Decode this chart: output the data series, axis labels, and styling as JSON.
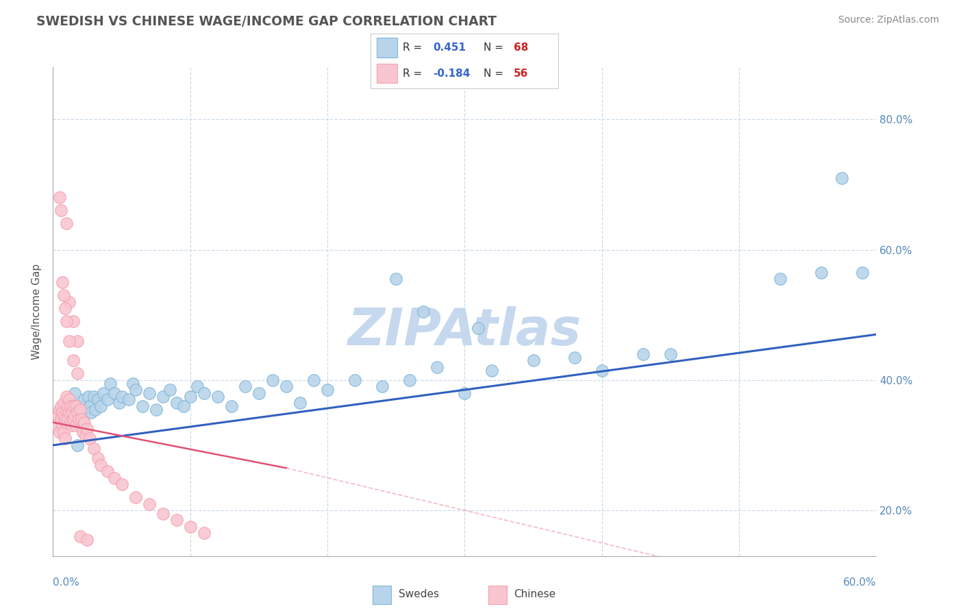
{
  "title": "SWEDISH VS CHINESE WAGE/INCOME GAP CORRELATION CHART",
  "source_text": "Source: ZipAtlas.com",
  "ylabel": "Wage/Income Gap",
  "xlim": [
    0.0,
    0.6
  ],
  "ylim": [
    0.13,
    0.88
  ],
  "xticks": [
    0.0,
    0.1,
    0.2,
    0.3,
    0.4,
    0.5,
    0.6
  ],
  "yticks": [
    0.2,
    0.4,
    0.6,
    0.8
  ],
  "ytick_labels": [
    "20.0%",
    "40.0%",
    "60.0%",
    "80.0%"
  ],
  "blue_color": "#7eb5d6",
  "blue_fill": "#b8d4ea",
  "pink_color": "#f4a0b0",
  "pink_fill": "#f9c6d0",
  "trend_blue": "#3060c0",
  "trend_pink": "#e05070",
  "watermark_color": "#c5d8ee",
  "title_color": "#555555",
  "axis_color": "#5588bb",
  "legend_R_color": "#3366cc",
  "legend_N_color": "#cc2222",
  "blue_x": [
    0.005,
    0.007,
    0.008,
    0.01,
    0.012,
    0.013,
    0.015,
    0.016,
    0.017,
    0.018,
    0.02,
    0.021,
    0.022,
    0.023,
    0.025,
    0.026,
    0.027,
    0.028,
    0.03,
    0.031,
    0.033,
    0.035,
    0.037,
    0.04,
    0.042,
    0.045,
    0.048,
    0.05,
    0.055,
    0.058,
    0.06,
    0.065,
    0.07,
    0.075,
    0.08,
    0.085,
    0.09,
    0.095,
    0.1,
    0.105,
    0.11,
    0.12,
    0.13,
    0.14,
    0.15,
    0.16,
    0.17,
    0.18,
    0.19,
    0.2,
    0.22,
    0.24,
    0.26,
    0.28,
    0.3,
    0.32,
    0.35,
    0.38,
    0.4,
    0.43,
    0.25,
    0.27,
    0.31,
    0.45,
    0.53,
    0.56,
    0.575,
    0.59
  ],
  "blue_y": [
    0.33,
    0.345,
    0.36,
    0.34,
    0.355,
    0.365,
    0.35,
    0.38,
    0.335,
    0.3,
    0.36,
    0.345,
    0.34,
    0.37,
    0.355,
    0.375,
    0.36,
    0.35,
    0.375,
    0.355,
    0.37,
    0.36,
    0.38,
    0.37,
    0.395,
    0.38,
    0.365,
    0.375,
    0.37,
    0.395,
    0.385,
    0.36,
    0.38,
    0.355,
    0.375,
    0.385,
    0.365,
    0.36,
    0.375,
    0.39,
    0.38,
    0.375,
    0.36,
    0.39,
    0.38,
    0.4,
    0.39,
    0.365,
    0.4,
    0.385,
    0.4,
    0.39,
    0.4,
    0.42,
    0.38,
    0.415,
    0.43,
    0.435,
    0.415,
    0.44,
    0.555,
    0.505,
    0.48,
    0.44,
    0.555,
    0.565,
    0.71,
    0.565
  ],
  "pink_x": [
    0.003,
    0.004,
    0.005,
    0.005,
    0.006,
    0.006,
    0.007,
    0.007,
    0.008,
    0.008,
    0.008,
    0.009,
    0.009,
    0.01,
    0.01,
    0.01,
    0.011,
    0.011,
    0.012,
    0.012,
    0.013,
    0.013,
    0.014,
    0.014,
    0.015,
    0.015,
    0.016,
    0.017,
    0.017,
    0.018,
    0.019,
    0.02,
    0.021,
    0.022,
    0.023,
    0.024,
    0.025,
    0.027,
    0.03,
    0.033,
    0.035,
    0.04,
    0.045,
    0.05,
    0.06,
    0.07,
    0.08,
    0.09,
    0.1,
    0.11,
    0.01,
    0.012,
    0.015,
    0.018,
    0.02,
    0.025
  ],
  "pink_y": [
    0.33,
    0.345,
    0.355,
    0.32,
    0.36,
    0.34,
    0.35,
    0.33,
    0.365,
    0.345,
    0.32,
    0.34,
    0.31,
    0.375,
    0.355,
    0.335,
    0.36,
    0.34,
    0.37,
    0.35,
    0.36,
    0.335,
    0.35,
    0.33,
    0.36,
    0.34,
    0.345,
    0.36,
    0.33,
    0.35,
    0.34,
    0.355,
    0.34,
    0.32,
    0.335,
    0.315,
    0.325,
    0.31,
    0.295,
    0.28,
    0.27,
    0.26,
    0.25,
    0.24,
    0.22,
    0.21,
    0.195,
    0.185,
    0.175,
    0.165,
    0.64,
    0.52,
    0.49,
    0.46,
    0.16,
    0.155
  ],
  "pink_extra_x": [
    0.005,
    0.006,
    0.007,
    0.008,
    0.009,
    0.01,
    0.012,
    0.015,
    0.018
  ],
  "pink_extra_y": [
    0.68,
    0.66,
    0.55,
    0.53,
    0.51,
    0.49,
    0.46,
    0.43,
    0.41
  ]
}
